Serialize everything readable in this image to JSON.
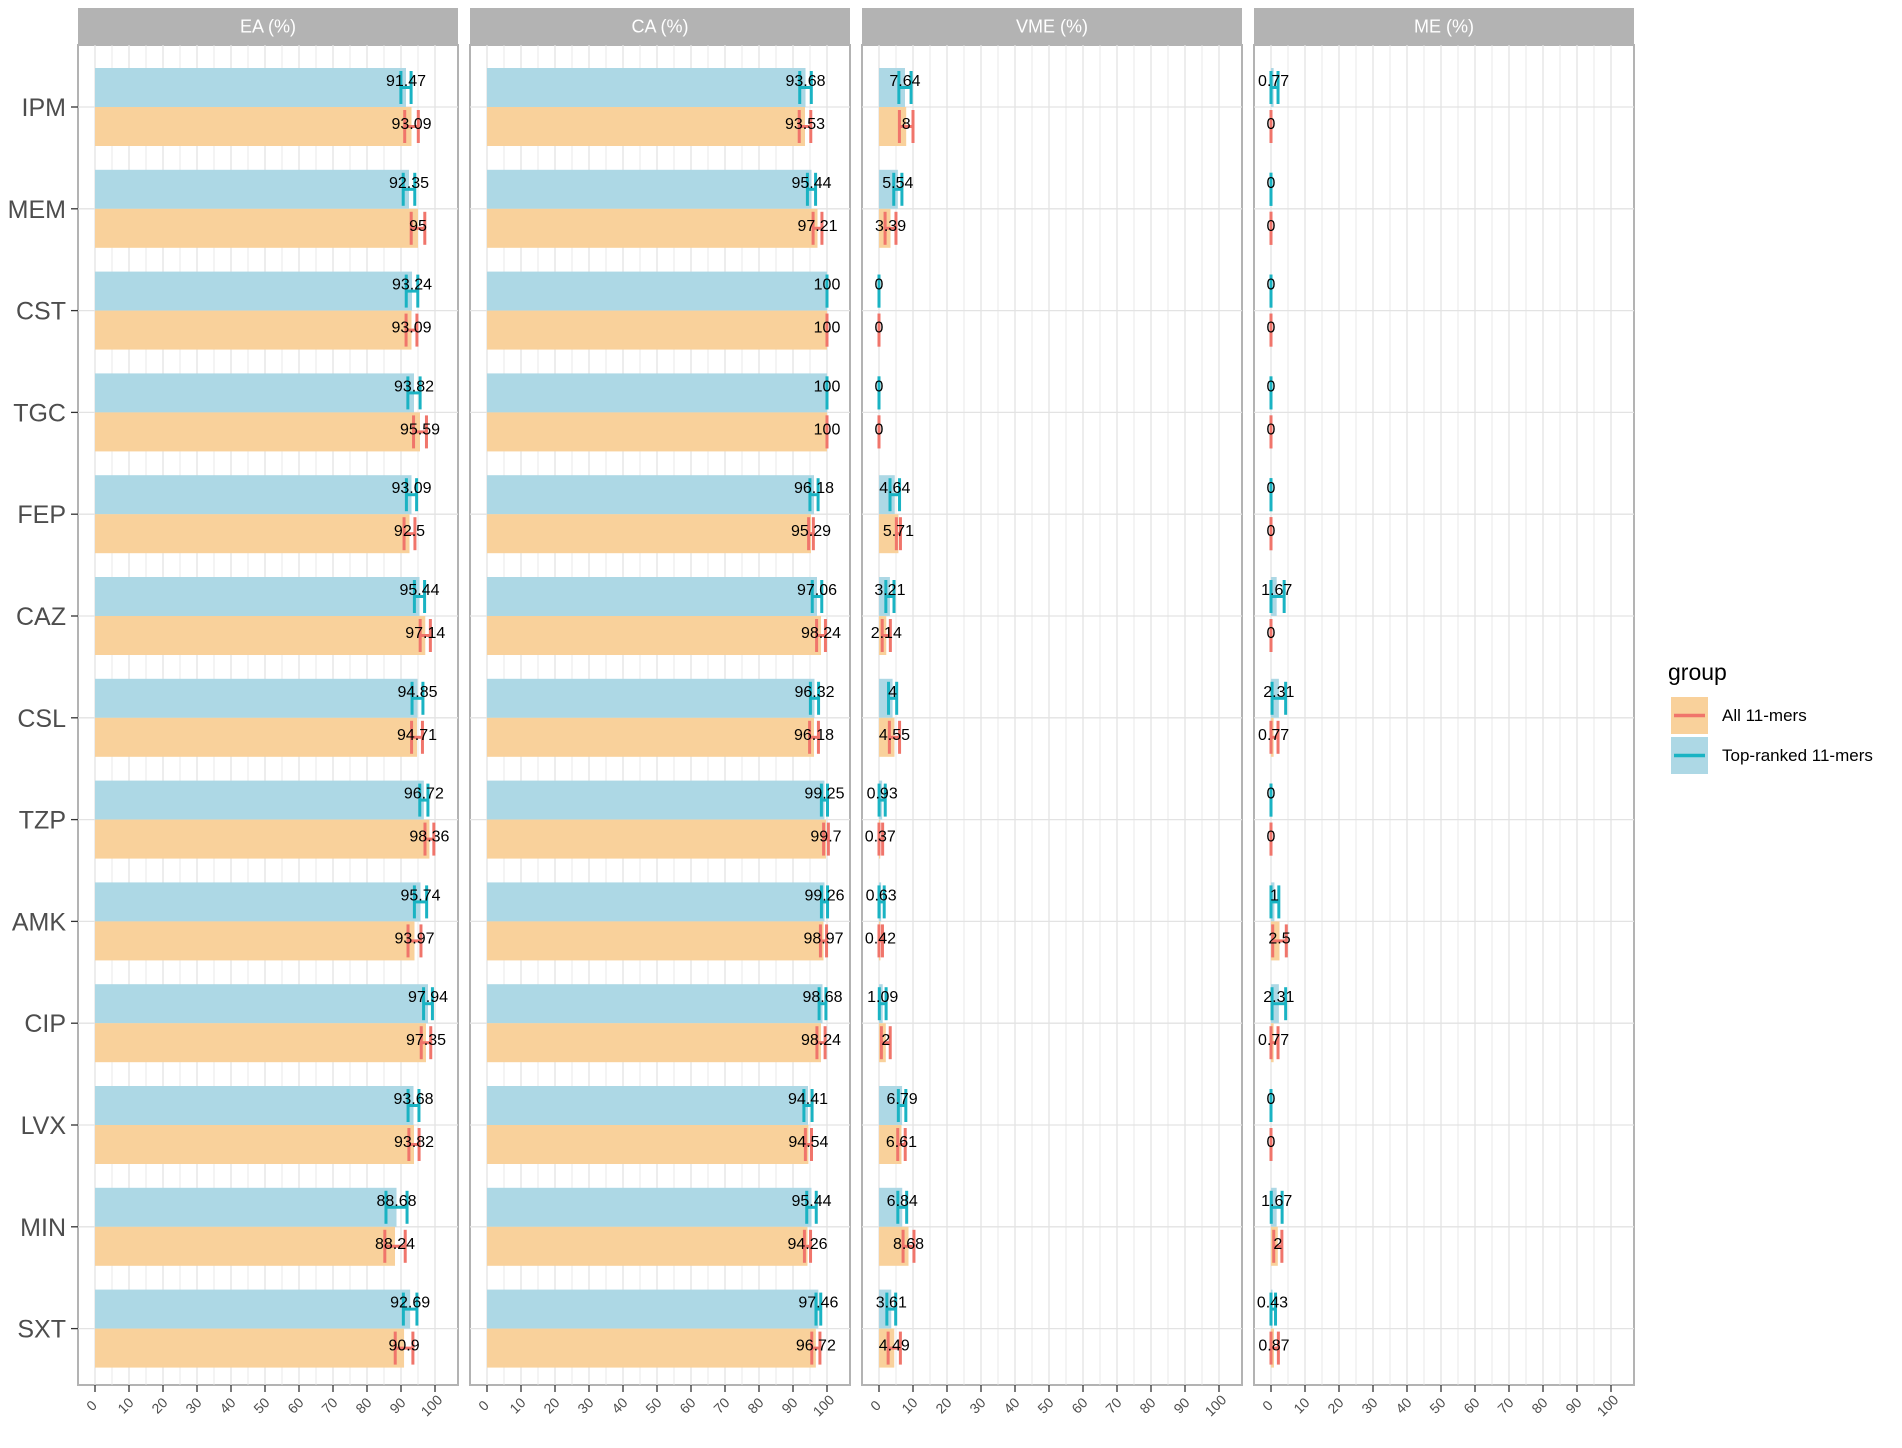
{
  "chart_data": {
    "type": "bar",
    "orientation": "horizontal",
    "grid": true,
    "legend_position": "right",
    "categories": [
      "IPM",
      "MEM",
      "CST",
      "TGC",
      "FEP",
      "CAZ",
      "CSL",
      "TZP",
      "AMK",
      "CIP",
      "LVX",
      "MIN",
      "SXT"
    ],
    "x_ticks": [
      "0",
      "10",
      "20",
      "30",
      "40",
      "50",
      "60",
      "70",
      "80",
      "90",
      "100"
    ],
    "xlim": [
      0,
      100
    ],
    "legend": {
      "title": "group",
      "entries": [
        "All 11-mers",
        "Top-ranked 11-mers"
      ]
    },
    "colors": {
      "All 11-mers": {
        "fill": "#f9d19b",
        "line": "#f0756b"
      },
      "Top-ranked 11-mers": {
        "fill": "#add8e5",
        "line": "#1ab3c3"
      },
      "strip": "#b3b3b3",
      "strip_text": "#ffffff",
      "grid": "#e3e3e3",
      "border": "#b3b3b3"
    },
    "panels": [
      {
        "title": "EA (%)",
        "series": [
          {
            "name": "Top-ranked 11-mers",
            "values": [
              91.47,
              92.35,
              93.24,
              93.82,
              93.09,
              95.44,
              94.85,
              96.72,
              95.74,
              97.94,
              93.68,
              88.68,
              92.69
            ],
            "labels": [
              "91.47",
              "92.35",
              "93.24",
              "93.82",
              "93.09",
              "95.44",
              "94.85",
              "96.72",
              "95.74",
              "97.94",
              "93.68",
              "88.68",
              "92.69"
            ],
            "errors": [
              1.5,
              1.7,
              1.7,
              1.8,
              1.5,
              1.5,
              1.6,
              1.2,
              1.8,
              1.3,
              1.6,
              3.1,
              2.0
            ]
          },
          {
            "name": "All 11-mers",
            "values": [
              93.09,
              95,
              93.09,
              95.59,
              92.5,
              97.14,
              94.71,
              98.36,
              93.97,
              97.35,
              93.82,
              88.24,
              90.9
            ],
            "labels": [
              "93.09",
              "95",
              "93.09",
              "95.59",
              "92.5",
              "97.14",
              "94.71",
              "98.36",
              "93.97",
              "97.35",
              "93.82",
              "88.24",
              "90.9"
            ],
            "errors": [
              2.0,
              2.0,
              1.6,
              1.9,
              1.6,
              1.5,
              1.6,
              1.3,
              1.9,
              1.4,
              1.5,
              3.0,
              2.6
            ]
          }
        ]
      },
      {
        "title": "CA (%)",
        "series": [
          {
            "name": "Top-ranked 11-mers",
            "values": [
              93.68,
              95.44,
              100,
              100,
              96.18,
              97.06,
              96.32,
              99.25,
              99.26,
              98.68,
              94.41,
              95.44,
              97.46
            ],
            "labels": [
              "93.68",
              "95.44",
              "100",
              "100",
              "96.18",
              "97.06",
              "96.32",
              "99.25",
              "99.26",
              "98.68",
              "94.41",
              "95.44",
              "97.46"
            ],
            "errors": [
              1.7,
              1.2,
              0,
              0,
              1.2,
              1.4,
              1.2,
              0.9,
              0.9,
              1.0,
              1.2,
              1.4,
              0.7
            ]
          },
          {
            "name": "All 11-mers",
            "values": [
              93.53,
              97.21,
              100,
              100,
              95.29,
              98.24,
              96.18,
              99.7,
              98.97,
              98.24,
              94.54,
              94.26,
              96.72
            ],
            "labels": [
              "93.53",
              "97.21",
              "100",
              "100",
              "95.29",
              "98.24",
              "96.18",
              "99.7",
              "98.97",
              "98.24",
              "94.54",
              "94.26",
              "96.72"
            ],
            "errors": [
              1.7,
              1.3,
              0,
              0,
              0.7,
              1.3,
              1.3,
              0.7,
              0.9,
              1.2,
              0.9,
              0.9,
              1.2
            ]
          }
        ]
      },
      {
        "title": "VME (%)",
        "series": [
          {
            "name": "Top-ranked 11-mers",
            "values": [
              7.64,
              5.54,
              0,
              0,
              4.64,
              3.21,
              4,
              0.93,
              0.63,
              1.09,
              6.79,
              6.84,
              3.61
            ],
            "labels": [
              "7.64",
              "5.54",
              "0",
              "0",
              "4.64",
              "3.21",
              "4",
              "0.93",
              "0.63",
              "1.09",
              "6.79",
              "6.84",
              "3.61"
            ],
            "errors": [
              1.8,
              1.2,
              0,
              0,
              1.4,
              1.2,
              1.2,
              0.9,
              0.9,
              1.0,
              1.1,
              1.3,
              1.3
            ]
          },
          {
            "name": "All 11-mers",
            "values": [
              8,
              3.39,
              0,
              0,
              5.71,
              2.14,
              4.55,
              0.37,
              0.42,
              2,
              6.61,
              8.68,
              4.49
            ],
            "labels": [
              "8",
              "3.39",
              "0",
              "0",
              "5.71",
              "2.14",
              "4.55",
              "0.37",
              "0.42",
              "2",
              "6.61",
              "8.68",
              "4.49"
            ],
            "errors": [
              2.0,
              1.6,
              0,
              0,
              0.6,
              1.2,
              1.5,
              0.7,
              0.6,
              1.3,
              1.1,
              1.6,
              1.8
            ]
          }
        ]
      },
      {
        "title": "ME (%)",
        "series": [
          {
            "name": "Top-ranked 11-mers",
            "values": [
              0.77,
              0,
              0,
              0,
              0,
              1.67,
              2.31,
              0,
              1,
              2.31,
              0,
              1.67,
              0.43
            ],
            "labels": [
              "0.77",
              "0",
              "0",
              "0",
              "0",
              "1.67",
              "2.31",
              "0",
              "1",
              "2.31",
              "0",
              "1.67",
              "0.43"
            ],
            "errors": [
              1.3,
              0,
              0,
              0,
              0,
              2.2,
              2.0,
              0,
              1.3,
              2.0,
              0,
              1.6,
              0.9
            ]
          },
          {
            "name": "All 11-mers",
            "values": [
              0,
              0,
              0,
              0,
              0,
              0,
              0.77,
              0,
              2.5,
              0.77,
              0,
              2,
              0.87
            ],
            "labels": [
              "0",
              "0",
              "0",
              "0",
              "0",
              "0",
              "0.77",
              "0",
              "2.5",
              "0.77",
              "0",
              "2",
              "0.87"
            ],
            "errors": [
              0,
              0,
              0,
              0,
              0,
              0,
              1.3,
              0,
              2.0,
              1.3,
              0,
              1.2,
              1.3
            ]
          }
        ]
      }
    ]
  }
}
